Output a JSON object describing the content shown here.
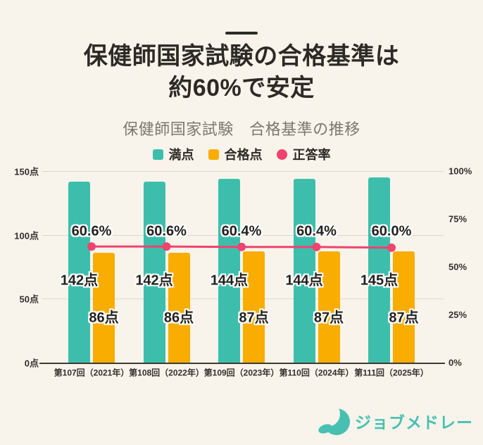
{
  "header": {
    "title_line1": "保健師国家試験の合格基準は",
    "title_line2": "約60%で安定",
    "subtitle": "保健師国家試験　合格基準の推移"
  },
  "legend": {
    "items": [
      {
        "label": "満点",
        "color": "#3dbead",
        "shape": "square"
      },
      {
        "label": "合格点",
        "color": "#f9ad00",
        "shape": "square"
      },
      {
        "label": "正答率",
        "color": "#f0436e",
        "shape": "circle"
      }
    ]
  },
  "chart_data": {
    "type": "bar",
    "title": "保健師国家試験　合格基準の推移",
    "categories": [
      "第107回（2021年）",
      "第108回（2022年）",
      "第109回（2023年）",
      "第110回（2024年）",
      "第111回（2025年）"
    ],
    "series": [
      {
        "name": "満点",
        "type": "bar",
        "axis": "left",
        "color": "#3dbead",
        "values": [
          142,
          142,
          144,
          144,
          145
        ],
        "value_labels": [
          "142点",
          "142点",
          "144点",
          "144点",
          "145点"
        ]
      },
      {
        "name": "合格点",
        "type": "bar",
        "axis": "left",
        "color": "#f9ad00",
        "values": [
          86,
          86,
          87,
          87,
          87
        ],
        "value_labels": [
          "86点",
          "86点",
          "87点",
          "87点",
          "87点"
        ]
      },
      {
        "name": "正答率",
        "type": "line",
        "axis": "right",
        "color": "#f0436e",
        "values": [
          60.6,
          60.6,
          60.4,
          60.4,
          60.0
        ],
        "value_labels": [
          "60.6%",
          "60.6%",
          "60.4%",
          "60.4%",
          "60.0%"
        ]
      }
    ],
    "left_axis": {
      "unit": "点",
      "min": 0,
      "max": 150,
      "ticks": [
        {
          "value": 0,
          "label": "0点"
        },
        {
          "value": 50,
          "label": "50点"
        },
        {
          "value": 100,
          "label": "100点"
        },
        {
          "value": 150,
          "label": "150点"
        }
      ]
    },
    "right_axis": {
      "unit": "%",
      "min": 0,
      "max": 100,
      "ticks": [
        {
          "value": 0,
          "label": "0%"
        },
        {
          "value": 25,
          "label": "25%"
        },
        {
          "value": 50,
          "label": "50%"
        },
        {
          "value": 75,
          "label": "75%"
        },
        {
          "value": 100,
          "label": "100%"
        }
      ]
    },
    "grid": "horizontal",
    "legend_position": "top"
  },
  "footer": {
    "brand": "ジョブメドレー",
    "brand_color": "#47c0b1"
  },
  "theme": {
    "background": "#f8f4eb",
    "title_color": "#2d2a25",
    "subtitle_color": "#7c7870",
    "axis_color": "#33302a",
    "gridline_color": "#dcd8ce",
    "baseline_color": "#3d3a34"
  }
}
